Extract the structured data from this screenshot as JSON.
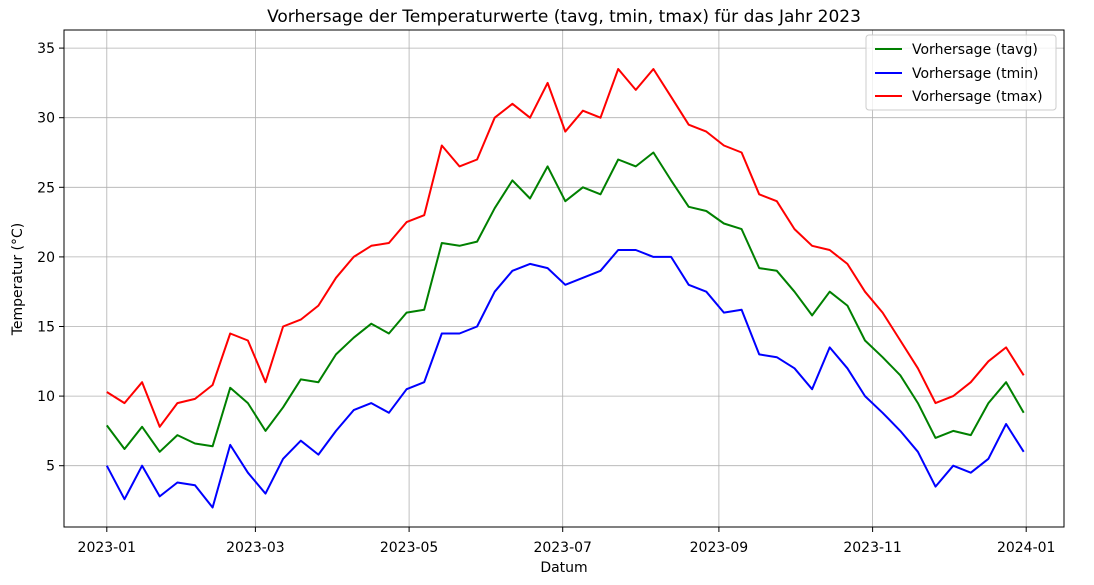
{
  "chart_data": {
    "type": "line",
    "title": "Vorhersage der Temperaturwerte (tavg, tmin, tmax) für das Jahr 2023",
    "xlabel": "Datum",
    "ylabel": "Temperatur (°C)",
    "xlim": [
      "2022-12-15",
      "2024-01-16"
    ],
    "ylim": [
      0.6,
      36.3
    ],
    "grid": true,
    "legend_position": "top-right",
    "x_ticks": [
      "2023-01-01",
      "2023-03-01",
      "2023-05-01",
      "2023-07-01",
      "2023-09-01",
      "2023-11-01",
      "2024-01-01"
    ],
    "x_tick_labels": [
      "2023-01",
      "2023-03",
      "2023-05",
      "2023-07",
      "2023-09",
      "2023-11",
      "2024-01"
    ],
    "y_ticks": [
      5,
      10,
      15,
      20,
      25,
      30,
      35
    ],
    "y_tick_labels": [
      "5",
      "10",
      "15",
      "20",
      "25",
      "30",
      "35"
    ],
    "x": [
      "2023-01-01",
      "2023-01-08",
      "2023-01-15",
      "2023-01-22",
      "2023-01-29",
      "2023-02-05",
      "2023-02-12",
      "2023-02-19",
      "2023-02-26",
      "2023-03-05",
      "2023-03-12",
      "2023-03-19",
      "2023-03-26",
      "2023-04-02",
      "2023-04-09",
      "2023-04-16",
      "2023-04-23",
      "2023-04-30",
      "2023-05-07",
      "2023-05-14",
      "2023-05-21",
      "2023-05-28",
      "2023-06-04",
      "2023-06-11",
      "2023-06-18",
      "2023-06-25",
      "2023-07-02",
      "2023-07-09",
      "2023-07-16",
      "2023-07-23",
      "2023-07-30",
      "2023-08-06",
      "2023-08-13",
      "2023-08-20",
      "2023-08-27",
      "2023-09-03",
      "2023-09-10",
      "2023-09-17",
      "2023-09-24",
      "2023-10-01",
      "2023-10-08",
      "2023-10-15",
      "2023-10-22",
      "2023-10-29",
      "2023-11-05",
      "2023-11-12",
      "2023-11-19",
      "2023-11-26",
      "2023-12-03",
      "2023-12-10",
      "2023-12-17",
      "2023-12-24",
      "2023-12-31"
    ],
    "series": [
      {
        "name": "Vorhersage (tavg)",
        "color": "#008000",
        "values": [
          7.9,
          6.2,
          7.8,
          6.0,
          7.2,
          6.6,
          6.4,
          10.6,
          9.5,
          7.5,
          9.2,
          11.2,
          11.0,
          13.0,
          14.2,
          15.2,
          14.5,
          16.0,
          16.2,
          21.0,
          20.8,
          21.1,
          23.5,
          25.5,
          24.2,
          26.5,
          24.0,
          25.0,
          24.5,
          27.0,
          26.5,
          27.5,
          25.5,
          23.6,
          23.3,
          22.4,
          22.0,
          19.2,
          19.0,
          17.5,
          15.8,
          17.5,
          16.5,
          14.0,
          12.8,
          11.5,
          9.5,
          7.0,
          7.5,
          7.2,
          9.5,
          11.0,
          8.8
        ]
      },
      {
        "name": "Vorhersage (tmin)",
        "color": "#0000ff",
        "values": [
          5.0,
          2.6,
          5.0,
          2.8,
          3.8,
          3.6,
          2.0,
          6.5,
          4.5,
          3.0,
          5.5,
          6.8,
          5.8,
          7.5,
          9.0,
          9.5,
          8.8,
          10.5,
          11.0,
          14.5,
          14.5,
          15.0,
          17.5,
          19.0,
          19.5,
          19.2,
          18.0,
          18.5,
          19.0,
          20.5,
          20.5,
          20.0,
          20.0,
          18.0,
          17.5,
          16.0,
          16.2,
          13.0,
          12.8,
          12.0,
          10.5,
          13.5,
          12.0,
          10.0,
          8.8,
          7.5,
          6.0,
          3.5,
          5.0,
          4.5,
          5.5,
          8.0,
          6.0
        ]
      },
      {
        "name": "Vorhersage (tmax)",
        "color": "#ff0000",
        "values": [
          10.3,
          9.5,
          11.0,
          7.8,
          9.5,
          9.8,
          10.8,
          14.5,
          14.0,
          11.0,
          15.0,
          15.5,
          16.5,
          18.5,
          20.0,
          20.8,
          21.0,
          22.5,
          23.0,
          28.0,
          26.5,
          27.0,
          30.0,
          31.0,
          30.0,
          32.5,
          29.0,
          30.5,
          30.0,
          33.5,
          32.0,
          33.5,
          31.5,
          29.5,
          29.0,
          28.0,
          27.5,
          24.5,
          24.0,
          22.0,
          20.8,
          20.5,
          19.5,
          17.5,
          16.0,
          14.0,
          12.0,
          9.5,
          10.0,
          11.0,
          12.5,
          13.5,
          11.5
        ]
      }
    ]
  }
}
